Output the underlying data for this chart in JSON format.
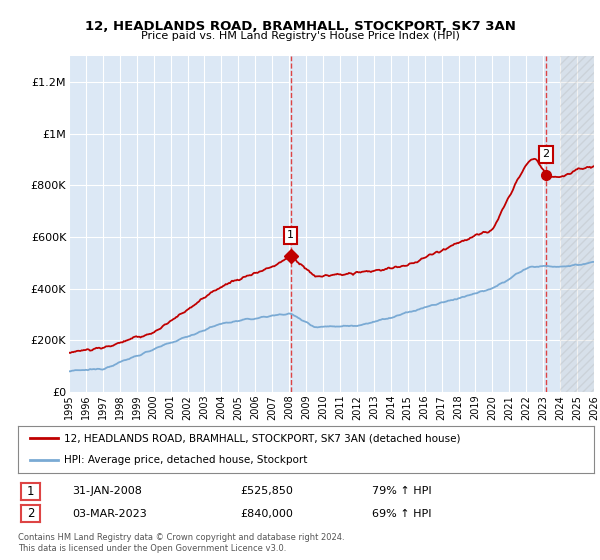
{
  "title": "12, HEADLANDS ROAD, BRAMHALL, STOCKPORT, SK7 3AN",
  "subtitle": "Price paid vs. HM Land Registry's House Price Index (HPI)",
  "ylim": [
    0,
    1300000
  ],
  "yticks": [
    0,
    200000,
    400000,
    600000,
    800000,
    1000000,
    1200000
  ],
  "ytick_labels": [
    "£0",
    "£200K",
    "£400K",
    "£600K",
    "£800K",
    "£1M",
    "£1.2M"
  ],
  "hpi_color": "#7aaad4",
  "price_color": "#c00000",
  "vline_color": "#dd4444",
  "plot_bg": "#dce8f5",
  "grid_color": "#ffffff",
  "legend_label_red": "12, HEADLANDS ROAD, BRAMHALL, STOCKPORT, SK7 3AN (detached house)",
  "legend_label_blue": "HPI: Average price, detached house, Stockport",
  "annotation1_num": "1",
  "annotation1_date": "31-JAN-2008",
  "annotation1_price": "£525,850",
  "annotation1_hpi": "79% ↑ HPI",
  "annotation2_num": "2",
  "annotation2_date": "03-MAR-2023",
  "annotation2_price": "£840,000",
  "annotation2_hpi": "69% ↑ HPI",
  "footer": "Contains HM Land Registry data © Crown copyright and database right 2024.\nThis data is licensed under the Open Government Licence v3.0.",
  "sale1_x": 2008.08,
  "sale1_y": 525850,
  "sale2_x": 2023.17,
  "sale2_y": 840000,
  "xmin": 1995,
  "xmax": 2026,
  "future_start": 2024.0
}
